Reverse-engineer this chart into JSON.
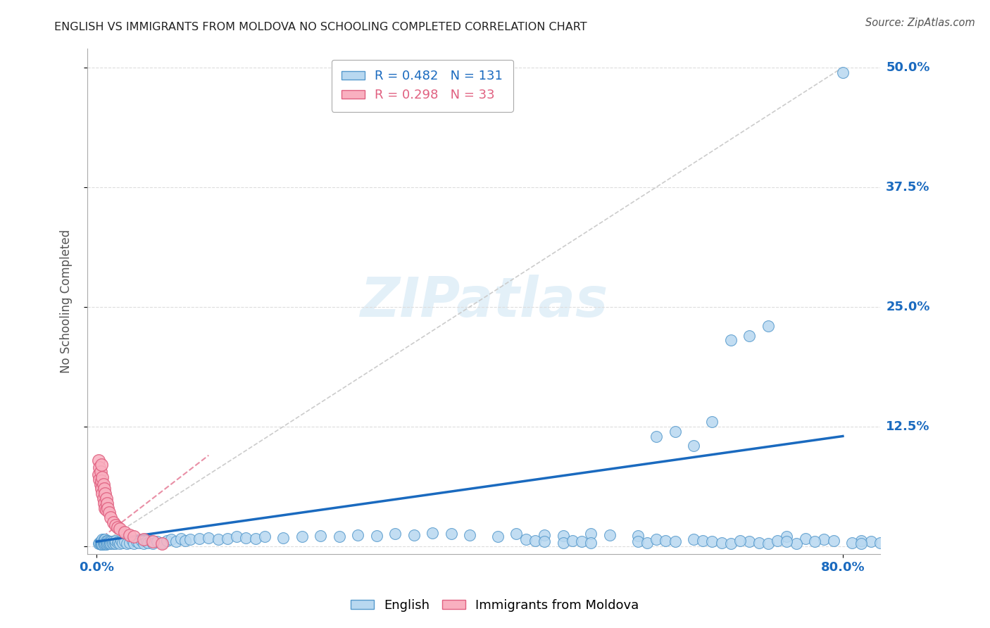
{
  "title": "ENGLISH VS IMMIGRANTS FROM MOLDOVA NO SCHOOLING COMPLETED CORRELATION CHART",
  "source": "Source: ZipAtlas.com",
  "ylabel": "No Schooling Completed",
  "watermark": "ZIPatlas",
  "legend_english": {
    "R": 0.482,
    "N": 131
  },
  "legend_moldova": {
    "R": 0.298,
    "N": 33
  },
  "english_color_face": "#b8d8f0",
  "english_color_edge": "#5599cc",
  "moldova_color_face": "#f9b0c0",
  "moldova_color_edge": "#e06080",
  "english_line_color": "#1a6abf",
  "moldova_line_color": "#e06080",
  "diag_line_color": "#cccccc",
  "grid_color": "#dddddd",
  "background_color": "#ffffff",
  "xlim": [
    -0.01,
    0.84
  ],
  "ylim": [
    -0.008,
    0.52
  ],
  "xticks": [
    0.0,
    0.8
  ],
  "xtick_labels": [
    "0.0%",
    "80.0%"
  ],
  "yticks": [
    0.0,
    0.125,
    0.25,
    0.375,
    0.5
  ],
  "ytick_labels": [
    "",
    "12.5%",
    "25.0%",
    "37.5%",
    "50.0%"
  ],
  "eng_line_x": [
    0.0,
    0.8
  ],
  "eng_line_y": [
    0.005,
    0.115
  ],
  "mol_line_x": [
    0.0,
    0.12
  ],
  "mol_line_y": [
    0.005,
    0.095
  ],
  "diag_line_x": [
    0.0,
    0.8
  ],
  "diag_line_y": [
    0.0,
    0.5
  ],
  "eng_scatter_x": [
    0.002,
    0.003,
    0.004,
    0.004,
    0.005,
    0.005,
    0.005,
    0.006,
    0.006,
    0.006,
    0.007,
    0.007,
    0.007,
    0.008,
    0.008,
    0.008,
    0.009,
    0.009,
    0.009,
    0.01,
    0.01,
    0.01,
    0.011,
    0.011,
    0.012,
    0.012,
    0.013,
    0.013,
    0.014,
    0.015,
    0.015,
    0.016,
    0.017,
    0.018,
    0.019,
    0.02,
    0.02,
    0.022,
    0.023,
    0.025,
    0.026,
    0.028,
    0.03,
    0.032,
    0.035,
    0.038,
    0.04,
    0.043,
    0.045,
    0.048,
    0.05,
    0.053,
    0.055,
    0.058,
    0.06,
    0.065,
    0.07,
    0.075,
    0.08,
    0.085,
    0.09,
    0.095,
    0.1,
    0.11,
    0.12,
    0.13,
    0.14,
    0.15,
    0.16,
    0.17,
    0.18,
    0.2,
    0.22,
    0.24,
    0.26,
    0.28,
    0.3,
    0.32,
    0.34,
    0.36,
    0.38,
    0.4,
    0.43,
    0.45,
    0.48,
    0.5,
    0.53,
    0.55,
    0.58,
    0.6,
    0.62,
    0.64,
    0.66,
    0.68,
    0.7,
    0.72,
    0.74,
    0.76,
    0.78,
    0.8,
    0.82,
    0.83,
    0.84,
    0.75,
    0.77,
    0.79,
    0.81,
    0.82,
    0.7,
    0.71,
    0.72,
    0.73,
    0.74,
    0.64,
    0.65,
    0.66,
    0.67,
    0.68,
    0.69,
    0.58,
    0.59,
    0.6,
    0.61,
    0.62,
    0.5,
    0.51,
    0.52,
    0.53,
    0.46,
    0.47,
    0.48
  ],
  "eng_scatter_y": [
    0.003,
    0.004,
    0.002,
    0.005,
    0.003,
    0.006,
    0.002,
    0.004,
    0.007,
    0.002,
    0.005,
    0.003,
    0.006,
    0.004,
    0.007,
    0.002,
    0.005,
    0.003,
    0.007,
    0.004,
    0.006,
    0.002,
    0.005,
    0.003,
    0.006,
    0.004,
    0.005,
    0.003,
    0.004,
    0.005,
    0.003,
    0.004,
    0.005,
    0.003,
    0.004,
    0.003,
    0.006,
    0.004,
    0.005,
    0.003,
    0.006,
    0.004,
    0.005,
    0.003,
    0.004,
    0.006,
    0.003,
    0.005,
    0.004,
    0.006,
    0.003,
    0.005,
    0.004,
    0.006,
    0.003,
    0.005,
    0.004,
    0.006,
    0.007,
    0.005,
    0.008,
    0.006,
    0.007,
    0.008,
    0.009,
    0.007,
    0.008,
    0.01,
    0.009,
    0.008,
    0.01,
    0.009,
    0.01,
    0.011,
    0.01,
    0.012,
    0.011,
    0.013,
    0.012,
    0.014,
    0.013,
    0.012,
    0.01,
    0.013,
    0.012,
    0.011,
    0.013,
    0.012,
    0.011,
    0.115,
    0.12,
    0.105,
    0.13,
    0.215,
    0.22,
    0.23,
    0.01,
    0.008,
    0.007,
    0.495,
    0.006,
    0.005,
    0.004,
    0.003,
    0.005,
    0.006,
    0.004,
    0.003,
    0.005,
    0.004,
    0.003,
    0.006,
    0.005,
    0.007,
    0.006,
    0.005,
    0.004,
    0.003,
    0.006,
    0.005,
    0.004,
    0.007,
    0.006,
    0.005,
    0.004,
    0.006,
    0.005,
    0.004,
    0.007,
    0.006,
    0.005
  ],
  "mol_scatter_x": [
    0.002,
    0.002,
    0.003,
    0.003,
    0.004,
    0.004,
    0.005,
    0.005,
    0.005,
    0.006,
    0.006,
    0.007,
    0.007,
    0.008,
    0.008,
    0.009,
    0.009,
    0.01,
    0.01,
    0.011,
    0.012,
    0.013,
    0.015,
    0.018,
    0.02,
    0.022,
    0.025,
    0.03,
    0.035,
    0.04,
    0.05,
    0.06,
    0.07
  ],
  "mol_scatter_y": [
    0.075,
    0.09,
    0.082,
    0.07,
    0.078,
    0.065,
    0.085,
    0.068,
    0.06,
    0.072,
    0.055,
    0.065,
    0.05,
    0.06,
    0.045,
    0.055,
    0.04,
    0.05,
    0.038,
    0.045,
    0.04,
    0.035,
    0.03,
    0.025,
    0.022,
    0.02,
    0.018,
    0.015,
    0.012,
    0.01,
    0.007,
    0.005,
    0.003
  ]
}
